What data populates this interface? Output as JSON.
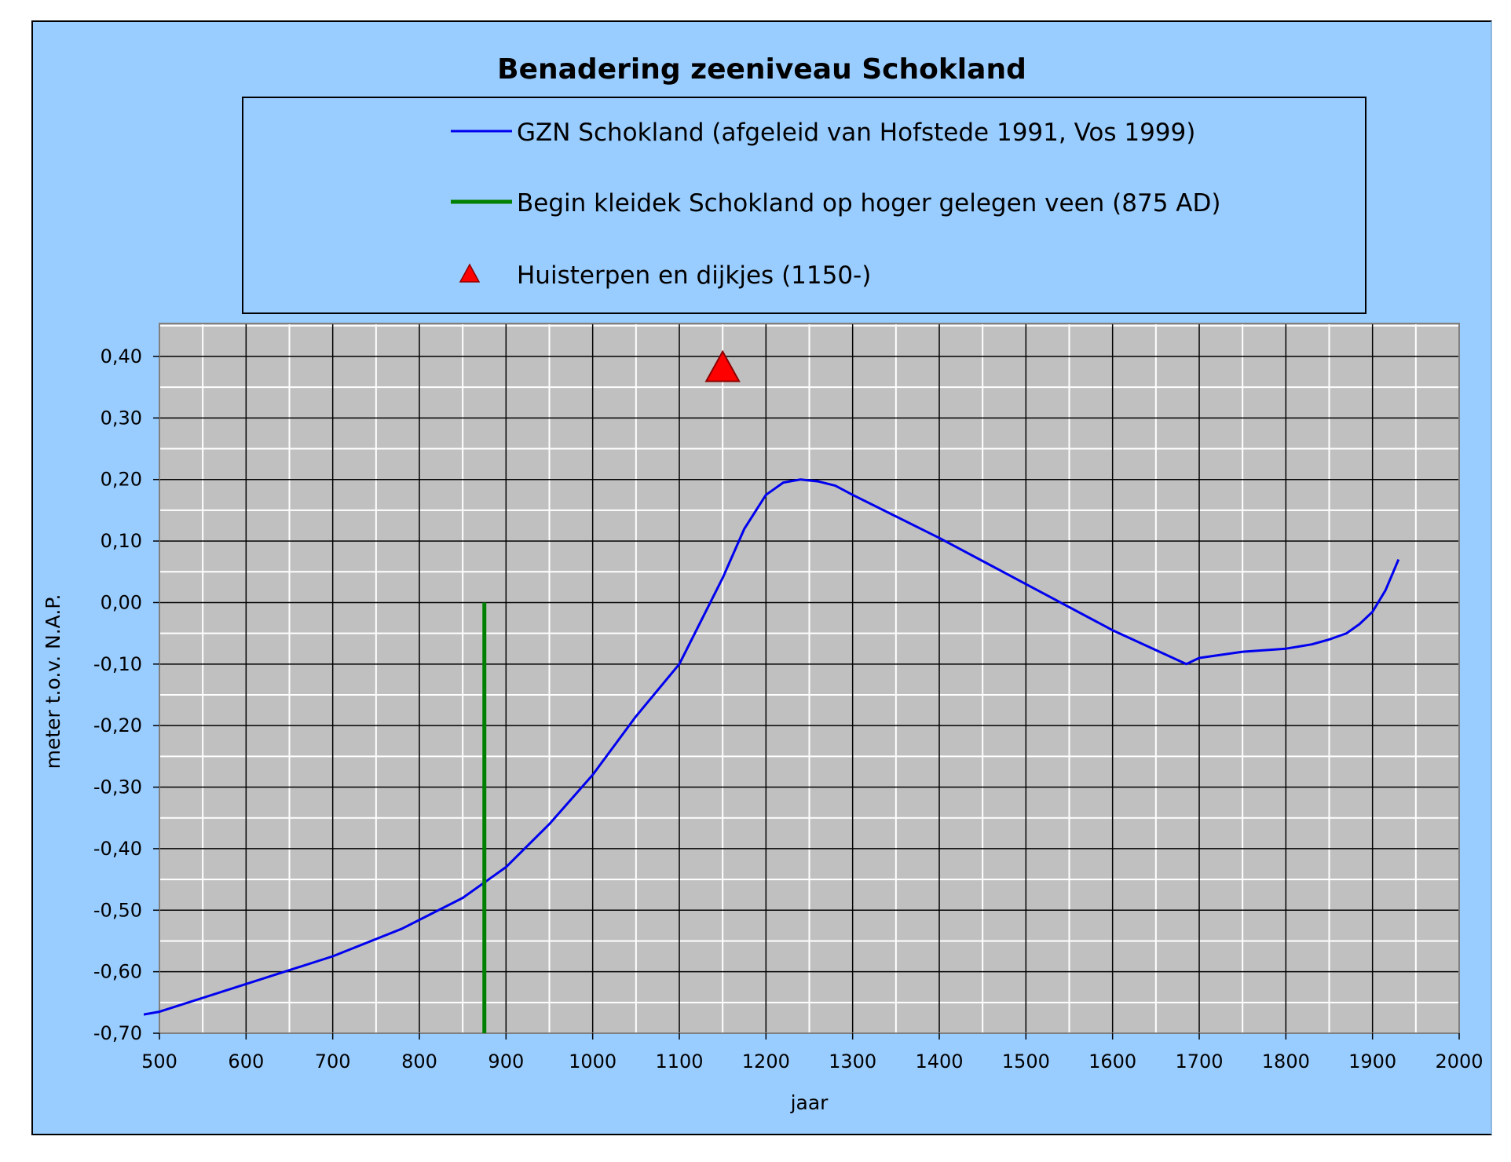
{
  "chart_data": {
    "type": "line",
    "title": "Benadering zeeniveau Schokland",
    "xlabel": "jaar",
    "ylabel": "meter t.o.v. N.A.P.",
    "xlim": [
      500,
      2000
    ],
    "ylim": [
      -0.7,
      0.45
    ],
    "x_ticks": [
      "500",
      "600",
      "700",
      "800",
      "900",
      "1000",
      "1100",
      "1200",
      "1300",
      "1400",
      "1500",
      "1600",
      "1700",
      "1800",
      "1900",
      "2000"
    ],
    "y_ticks": [
      "0,40",
      "0,30",
      "0,20",
      "0,10",
      "0,00",
      "-0,10",
      "-0,20",
      "-0,30",
      "-0,40",
      "-0,50",
      "-0,60",
      "-0,70"
    ],
    "grid": true,
    "legend_position": "top",
    "series": [
      {
        "name": "GZN Schokland (afgeleid van Hofstede 1991, Vos 1999)",
        "kind": "line",
        "color": "#0000ee",
        "x": [
          480,
          500,
          600,
          700,
          780,
          850,
          900,
          950,
          1000,
          1050,
          1100,
          1150,
          1175,
          1200,
          1220,
          1240,
          1260,
          1280,
          1300,
          1400,
          1500,
          1600,
          1685,
          1700,
          1750,
          1800,
          1830,
          1850,
          1870,
          1885,
          1900,
          1915,
          1930
        ],
        "y": [
          -0.67,
          -0.665,
          -0.62,
          -0.575,
          -0.53,
          -0.48,
          -0.43,
          -0.36,
          -0.28,
          -0.185,
          -0.1,
          0.04,
          0.12,
          0.175,
          0.195,
          0.2,
          0.197,
          0.19,
          0.175,
          0.105,
          0.03,
          -0.045,
          -0.1,
          -0.09,
          -0.08,
          -0.075,
          -0.068,
          -0.06,
          -0.05,
          -0.035,
          -0.015,
          0.02,
          0.07
        ]
      },
      {
        "name": "Begin kleidek Schokland op hoger gelegen veen (875 AD)",
        "kind": "vertical-line",
        "color": "#008000",
        "x": [
          875,
          875
        ],
        "y": [
          -0.7,
          0.0
        ]
      },
      {
        "name": "Huisterpen en dijkjes (1150-)",
        "kind": "marker",
        "marker": "triangle",
        "color": "#ff0000",
        "x": [
          1150
        ],
        "y": [
          0.38
        ]
      }
    ]
  }
}
